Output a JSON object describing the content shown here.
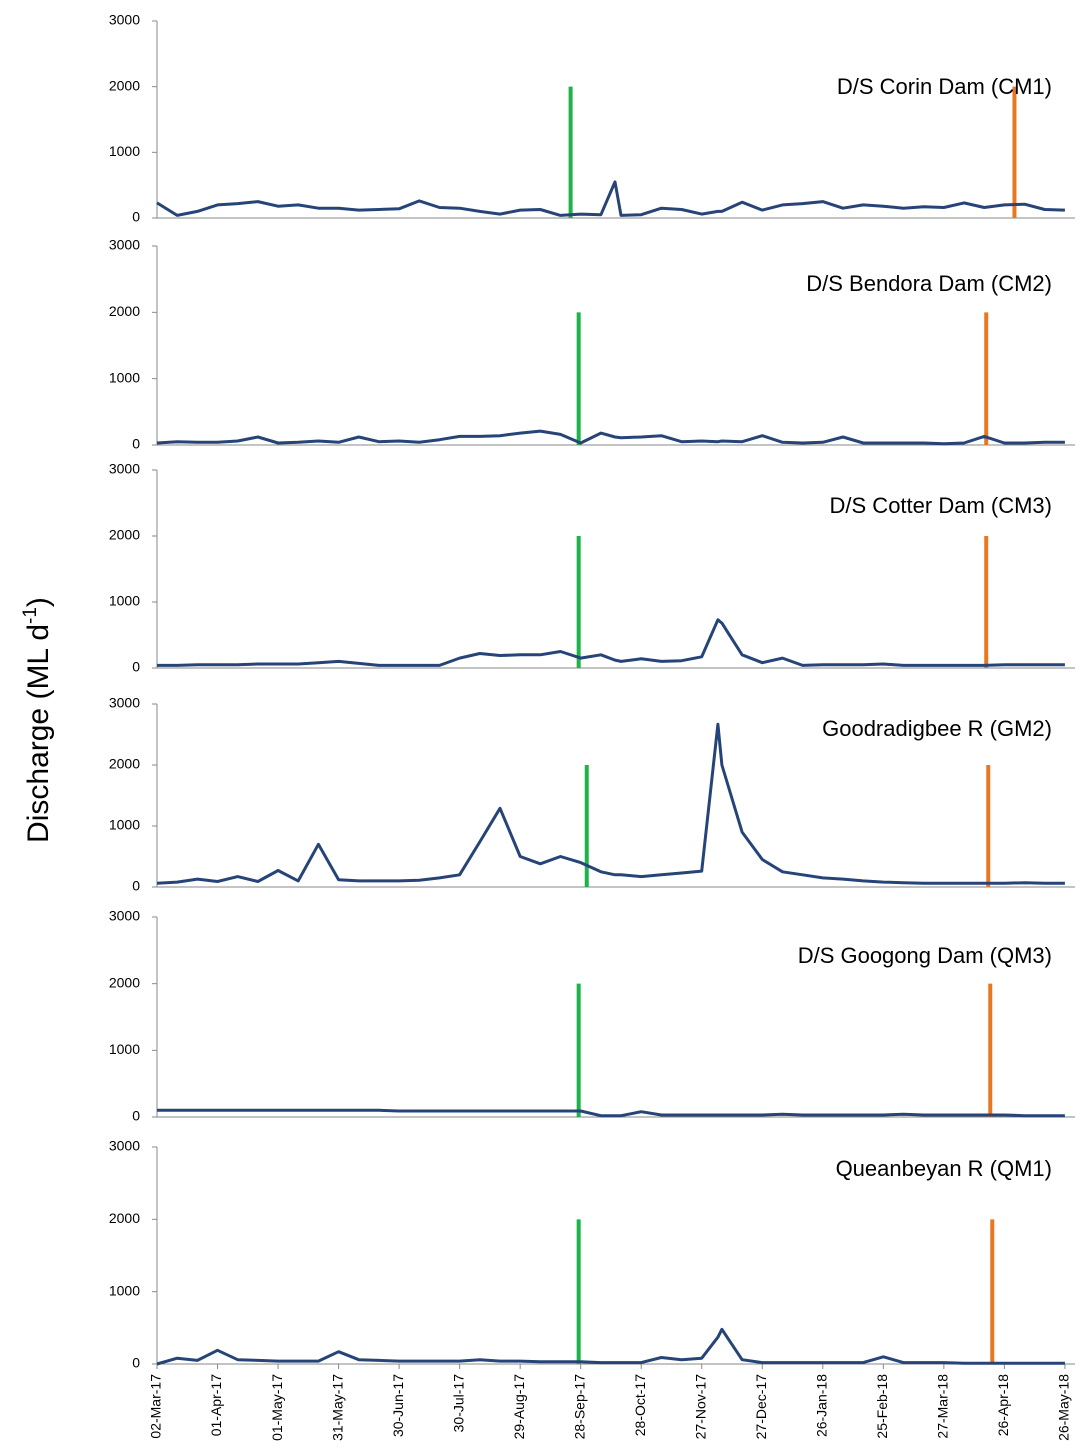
{
  "ylabel_parts": [
    "Discharge (ML d",
    "-1",
    ")"
  ],
  "chart_data": [
    {
      "type": "line",
      "title": "D/S Corin Dam (CM1)",
      "ylim": [
        0,
        3000
      ],
      "yticks": [
        0,
        1000,
        2000,
        3000
      ],
      "xlim": [
        "2017-03-02",
        "2018-05-31"
      ],
      "x": [
        "2017-03-02",
        "2017-03-12",
        "2017-03-22",
        "2017-04-01",
        "2017-04-11",
        "2017-04-21",
        "2017-05-01",
        "2017-05-11",
        "2017-05-21",
        "2017-05-31",
        "2017-06-10",
        "2017-06-20",
        "2017-06-30",
        "2017-07-10",
        "2017-07-20",
        "2017-07-30",
        "2017-08-09",
        "2017-08-19",
        "2017-08-29",
        "2017-09-08",
        "2017-09-18",
        "2017-09-28",
        "2017-10-08",
        "2017-10-15",
        "2017-10-18",
        "2017-10-28",
        "2017-11-07",
        "2017-11-17",
        "2017-11-27",
        "2017-12-05",
        "2017-12-07",
        "2017-12-17",
        "2017-12-27",
        "2018-01-06",
        "2018-01-16",
        "2018-01-26",
        "2018-02-05",
        "2018-02-15",
        "2018-02-25",
        "2018-03-07",
        "2018-03-17",
        "2018-03-27",
        "2018-04-06",
        "2018-04-16",
        "2018-04-26",
        "2018-05-06",
        "2018-05-16",
        "2018-05-26"
      ],
      "series": [
        {
          "color": "#264478",
          "values": [
            230,
            40,
            100,
            200,
            220,
            250,
            180,
            200,
            150,
            150,
            120,
            130,
            140,
            260,
            160,
            150,
            100,
            60,
            120,
            130,
            40,
            60,
            50,
            550,
            40,
            50,
            150,
            130,
            60,
            100,
            100,
            240,
            120,
            200,
            220,
            250,
            150,
            200,
            180,
            150,
            170,
            160,
            230,
            160,
            200,
            210,
            130,
            120
          ]
        }
      ],
      "markers": [
        {
          "x": "2017-09-23",
          "value": 2000,
          "color": "#1db34a"
        },
        {
          "x": "2018-05-01",
          "value": 2000,
          "color": "#e87722"
        }
      ]
    },
    {
      "type": "line",
      "title": "D/S Bendora Dam (CM2)",
      "ylim": [
        0,
        3000
      ],
      "yticks": [
        0,
        1000,
        2000,
        3000
      ],
      "xlim": [
        "2017-03-02",
        "2018-05-31"
      ],
      "x": [
        "2017-03-02",
        "2017-03-12",
        "2017-03-22",
        "2017-04-01",
        "2017-04-11",
        "2017-04-21",
        "2017-05-01",
        "2017-05-11",
        "2017-05-21",
        "2017-05-31",
        "2017-06-10",
        "2017-06-20",
        "2017-06-30",
        "2017-07-10",
        "2017-07-20",
        "2017-07-30",
        "2017-08-09",
        "2017-08-19",
        "2017-08-29",
        "2017-09-08",
        "2017-09-18",
        "2017-09-28",
        "2017-10-08",
        "2017-10-15",
        "2017-10-18",
        "2017-10-28",
        "2017-11-07",
        "2017-11-17",
        "2017-11-27",
        "2017-12-05",
        "2017-12-07",
        "2017-12-17",
        "2017-12-27",
        "2018-01-06",
        "2018-01-16",
        "2018-01-26",
        "2018-02-05",
        "2018-02-15",
        "2018-02-25",
        "2018-03-07",
        "2018-03-17",
        "2018-03-27",
        "2018-04-06",
        "2018-04-16",
        "2018-04-26",
        "2018-05-06",
        "2018-05-16",
        "2018-05-26"
      ],
      "series": [
        {
          "color": "#264478",
          "values": [
            30,
            50,
            40,
            40,
            60,
            120,
            30,
            40,
            60,
            40,
            120,
            50,
            60,
            40,
            80,
            130,
            130,
            140,
            180,
            210,
            160,
            30,
            180,
            120,
            110,
            120,
            140,
            50,
            60,
            50,
            60,
            50,
            140,
            40,
            30,
            40,
            120,
            30,
            30,
            30,
            30,
            20,
            30,
            130,
            30,
            30,
            40,
            40
          ]
        }
      ],
      "markers": [
        {
          "x": "2017-09-27",
          "value": 2000,
          "color": "#1db34a"
        },
        {
          "x": "2018-04-17",
          "value": 2000,
          "color": "#e87722"
        }
      ]
    },
    {
      "type": "line",
      "title": "D/S Cotter Dam (CM3)",
      "ylim": [
        0,
        3000
      ],
      "yticks": [
        0,
        1000,
        2000,
        3000
      ],
      "xlim": [
        "2017-03-02",
        "2018-05-31"
      ],
      "x": [
        "2017-03-02",
        "2017-03-12",
        "2017-03-22",
        "2017-04-01",
        "2017-04-11",
        "2017-04-21",
        "2017-05-01",
        "2017-05-11",
        "2017-05-21",
        "2017-05-31",
        "2017-06-10",
        "2017-06-20",
        "2017-06-30",
        "2017-07-10",
        "2017-07-20",
        "2017-07-30",
        "2017-08-09",
        "2017-08-19",
        "2017-08-29",
        "2017-09-08",
        "2017-09-18",
        "2017-09-28",
        "2017-10-08",
        "2017-10-15",
        "2017-10-18",
        "2017-10-28",
        "2017-11-07",
        "2017-11-17",
        "2017-11-27",
        "2017-12-05",
        "2017-12-07",
        "2017-12-17",
        "2017-12-27",
        "2018-01-06",
        "2018-01-16",
        "2018-01-26",
        "2018-02-05",
        "2018-02-15",
        "2018-02-25",
        "2018-03-07",
        "2018-03-17",
        "2018-03-27",
        "2018-04-06",
        "2018-04-16",
        "2018-04-26",
        "2018-05-06",
        "2018-05-16",
        "2018-05-26"
      ],
      "series": [
        {
          "color": "#264478",
          "values": [
            40,
            40,
            50,
            50,
            50,
            60,
            60,
            60,
            80,
            100,
            70,
            40,
            40,
            40,
            40,
            150,
            220,
            190,
            200,
            200,
            250,
            150,
            200,
            120,
            100,
            140,
            100,
            110,
            170,
            730,
            680,
            200,
            80,
            150,
            40,
            50,
            50,
            50,
            60,
            40,
            40,
            40,
            40,
            40,
            50,
            50,
            50,
            50
          ]
        }
      ],
      "markers": [
        {
          "x": "2017-09-27",
          "value": 2000,
          "color": "#1db34a"
        },
        {
          "x": "2018-04-17",
          "value": 2000,
          "color": "#e87722"
        }
      ]
    },
    {
      "type": "line",
      "title": "Goodradigbee R (GM2)",
      "ylim": [
        0,
        3000
      ],
      "yticks": [
        0,
        1000,
        2000,
        3000
      ],
      "xlim": [
        "2017-03-02",
        "2018-05-31"
      ],
      "x": [
        "2017-03-02",
        "2017-03-12",
        "2017-03-22",
        "2017-04-01",
        "2017-04-11",
        "2017-04-21",
        "2017-05-01",
        "2017-05-11",
        "2017-05-21",
        "2017-05-31",
        "2017-06-10",
        "2017-06-20",
        "2017-06-30",
        "2017-07-10",
        "2017-07-20",
        "2017-07-30",
        "2017-08-09",
        "2017-08-19",
        "2017-08-29",
        "2017-09-08",
        "2017-09-18",
        "2017-09-28",
        "2017-10-08",
        "2017-10-15",
        "2017-10-18",
        "2017-10-28",
        "2017-11-07",
        "2017-11-17",
        "2017-11-27",
        "2017-12-05",
        "2017-12-07",
        "2017-12-17",
        "2017-12-27",
        "2018-01-06",
        "2018-01-16",
        "2018-01-26",
        "2018-02-05",
        "2018-02-15",
        "2018-02-25",
        "2018-03-07",
        "2018-03-17",
        "2018-03-27",
        "2018-04-06",
        "2018-04-16",
        "2018-04-26",
        "2018-05-06",
        "2018-05-16",
        "2018-05-26"
      ],
      "series": [
        {
          "color": "#264478",
          "values": [
            60,
            80,
            130,
            90,
            170,
            90,
            270,
            100,
            700,
            120,
            100,
            100,
            100,
            110,
            150,
            200,
            740,
            1290,
            500,
            380,
            500,
            400,
            250,
            200,
            200,
            170,
            200,
            230,
            260,
            2667,
            2000,
            900,
            450,
            250,
            200,
            150,
            130,
            100,
            80,
            70,
            60,
            60,
            60,
            60,
            60,
            70,
            60,
            60
          ]
        }
      ],
      "markers": [
        {
          "x": "2017-10-01",
          "value": 2000,
          "color": "#1db34a"
        },
        {
          "x": "2018-04-18",
          "value": 2000,
          "color": "#e87722"
        }
      ]
    },
    {
      "type": "line",
      "title": "D/S Googong Dam (QM3)",
      "ylim": [
        0,
        3000
      ],
      "yticks": [
        0,
        1000,
        2000,
        3000
      ],
      "xlim": [
        "2017-03-02",
        "2018-05-31"
      ],
      "x": [
        "2017-03-02",
        "2017-03-12",
        "2017-03-22",
        "2017-04-01",
        "2017-04-11",
        "2017-04-21",
        "2017-05-01",
        "2017-05-11",
        "2017-05-21",
        "2017-05-31",
        "2017-06-10",
        "2017-06-20",
        "2017-06-30",
        "2017-07-10",
        "2017-07-20",
        "2017-07-30",
        "2017-08-09",
        "2017-08-19",
        "2017-08-29",
        "2017-09-08",
        "2017-09-18",
        "2017-09-28",
        "2017-10-08",
        "2017-10-15",
        "2017-10-18",
        "2017-10-28",
        "2017-11-07",
        "2017-11-17",
        "2017-11-27",
        "2017-12-05",
        "2017-12-07",
        "2017-12-17",
        "2017-12-27",
        "2018-01-06",
        "2018-01-16",
        "2018-01-26",
        "2018-02-05",
        "2018-02-15",
        "2018-02-25",
        "2018-03-07",
        "2018-03-17",
        "2018-03-27",
        "2018-04-06",
        "2018-04-16",
        "2018-04-26",
        "2018-05-06",
        "2018-05-16",
        "2018-05-26"
      ],
      "series": [
        {
          "color": "#264478",
          "values": [
            100,
            100,
            100,
            100,
            100,
            100,
            100,
            100,
            100,
            100,
            100,
            100,
            90,
            90,
            90,
            90,
            90,
            90,
            90,
            90,
            90,
            90,
            20,
            20,
            20,
            80,
            30,
            30,
            30,
            30,
            30,
            30,
            30,
            40,
            30,
            30,
            30,
            30,
            30,
            40,
            30,
            30,
            30,
            30,
            30,
            20,
            20,
            20
          ]
        }
      ],
      "markers": [
        {
          "x": "2017-09-27",
          "value": 2000,
          "color": "#1db34a"
        },
        {
          "x": "2018-04-19",
          "value": 2000,
          "color": "#e87722"
        }
      ]
    },
    {
      "type": "line",
      "title": "Queanbeyan R (QM1)",
      "ylim": [
        0,
        3000
      ],
      "yticks": [
        0,
        1000,
        2000,
        3000
      ],
      "xlim": [
        "2017-03-02",
        "2018-05-31"
      ],
      "x": [
        "2017-03-02",
        "2017-03-12",
        "2017-03-22",
        "2017-04-01",
        "2017-04-11",
        "2017-04-21",
        "2017-05-01",
        "2017-05-11",
        "2017-05-21",
        "2017-05-31",
        "2017-06-10",
        "2017-06-20",
        "2017-06-30",
        "2017-07-10",
        "2017-07-20",
        "2017-07-30",
        "2017-08-09",
        "2017-08-19",
        "2017-08-29",
        "2017-09-08",
        "2017-09-18",
        "2017-09-28",
        "2017-10-08",
        "2017-10-15",
        "2017-10-18",
        "2017-10-28",
        "2017-11-07",
        "2017-11-17",
        "2017-11-27",
        "2017-12-05",
        "2017-12-07",
        "2017-12-17",
        "2017-12-27",
        "2018-01-06",
        "2018-01-16",
        "2018-01-26",
        "2018-02-05",
        "2018-02-15",
        "2018-02-25",
        "2018-03-07",
        "2018-03-17",
        "2018-03-27",
        "2018-04-06",
        "2018-04-16",
        "2018-04-26",
        "2018-05-06",
        "2018-05-16",
        "2018-05-26"
      ],
      "series": [
        {
          "color": "#264478",
          "values": [
            0,
            80,
            50,
            190,
            60,
            50,
            40,
            40,
            40,
            170,
            60,
            50,
            40,
            40,
            40,
            40,
            60,
            40,
            40,
            30,
            30,
            30,
            20,
            20,
            20,
            20,
            90,
            60,
            80,
            370,
            480,
            60,
            20,
            20,
            20,
            20,
            20,
            20,
            100,
            20,
            20,
            20,
            10,
            10,
            10,
            10,
            10,
            10
          ]
        }
      ],
      "markers": [
        {
          "x": "2017-09-27",
          "value": 2000,
          "color": "#1db34a"
        },
        {
          "x": "2018-04-20",
          "value": 2000,
          "color": "#e87722"
        }
      ],
      "xticks": [
        {
          "value": "2017-03-02",
          "label": "02-Mar-17"
        },
        {
          "value": "2017-04-01",
          "label": "01-Apr-17"
        },
        {
          "value": "2017-05-01",
          "label": "01-May-17"
        },
        {
          "value": "2017-05-31",
          "label": "31-May-17"
        },
        {
          "value": "2017-06-30",
          "label": "30-Jun-17"
        },
        {
          "value": "2017-07-30",
          "label": "30-Jul-17"
        },
        {
          "value": "2017-08-29",
          "label": "29-Aug-17"
        },
        {
          "value": "2017-09-28",
          "label": "28-Sep-17"
        },
        {
          "value": "2017-10-28",
          "label": "28-Oct-17"
        },
        {
          "value": "2017-11-27",
          "label": "27-Nov-17"
        },
        {
          "value": "2017-12-27",
          "label": "27-Dec-17"
        },
        {
          "value": "2018-01-26",
          "label": "26-Jan-18"
        },
        {
          "value": "2018-02-25",
          "label": "25-Feb-18"
        },
        {
          "value": "2018-03-27",
          "label": "27-Mar-18"
        },
        {
          "value": "2018-04-26",
          "label": "26-Apr-18"
        },
        {
          "value": "2018-05-26",
          "label": "26-May-18"
        }
      ]
    }
  ]
}
